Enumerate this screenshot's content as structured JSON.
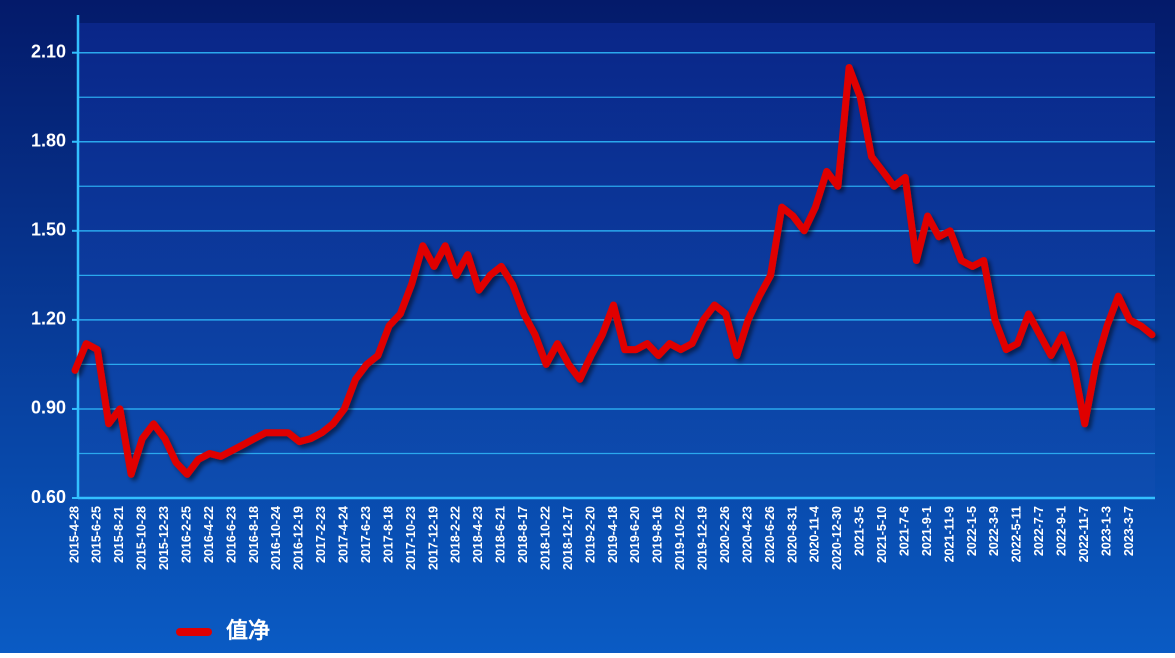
{
  "chart_data": {
    "type": "line",
    "categories": [
      "2015-4-28",
      null,
      "2015-6-25",
      null,
      "2015-8-21",
      null,
      "2015-10-28",
      null,
      "2015-12-23",
      null,
      "2016-2-25",
      null,
      "2016-4-22",
      null,
      "2016-6-23",
      null,
      "2016-8-18",
      null,
      "2016-10-24",
      null,
      "2016-12-19",
      null,
      "2017-2-23",
      null,
      "2017-4-24",
      null,
      "2017-6-23",
      null,
      "2017-8-18",
      null,
      "2017-10-23",
      null,
      "2017-12-19",
      null,
      "2018-2-22",
      null,
      "2018-4-23",
      null,
      "2018-6-21",
      null,
      "2018-8-17",
      null,
      "2018-10-22",
      null,
      "2018-12-17",
      null,
      "2019-2-20",
      null,
      "2019-4-18",
      null,
      "2019-6-20",
      null,
      "2019-8-16",
      null,
      "2019-10-22",
      null,
      "2019-12-19",
      null,
      "2020-2-26",
      null,
      "2020-4-23",
      null,
      "2020-6-26",
      null,
      "2020-8-31",
      null,
      "2020-11-4",
      null,
      "2020-12-30",
      null,
      "2021-3-5",
      null,
      "2021-5-10",
      null,
      "2021-7-6",
      null,
      "2021-9-1",
      null,
      "2021-11-9",
      null,
      "2022-1-5",
      null,
      "2022-3-9",
      null,
      "2022-5-11",
      null,
      "2022-7-7",
      null,
      "2022-9-1",
      null,
      "2022-11-7",
      null,
      "2023-1-3",
      null,
      "2023-3-7",
      null,
      null
    ],
    "series": [
      {
        "name": "值净",
        "color": "#e00000",
        "values": [
          1.03,
          1.12,
          1.1,
          0.85,
          0.9,
          0.68,
          0.8,
          0.85,
          0.8,
          0.72,
          0.68,
          0.73,
          0.75,
          0.74,
          0.76,
          0.78,
          0.8,
          0.82,
          0.82,
          0.82,
          0.79,
          0.8,
          0.82,
          0.85,
          0.9,
          1.0,
          1.05,
          1.08,
          1.18,
          1.22,
          1.32,
          1.45,
          1.38,
          1.45,
          1.35,
          1.42,
          1.3,
          1.35,
          1.38,
          1.32,
          1.22,
          1.15,
          1.05,
          1.12,
          1.05,
          1.0,
          1.08,
          1.15,
          1.25,
          1.1,
          1.1,
          1.12,
          1.08,
          1.12,
          1.1,
          1.12,
          1.2,
          1.25,
          1.22,
          1.08,
          1.2,
          1.28,
          1.35,
          1.58,
          1.55,
          1.5,
          1.58,
          1.7,
          1.65,
          2.05,
          1.95,
          1.75,
          1.7,
          1.65,
          1.68,
          1.4,
          1.55,
          1.48,
          1.5,
          1.4,
          1.38,
          1.4,
          1.2,
          1.1,
          1.12,
          1.22,
          1.15,
          1.08,
          1.15,
          1.05,
          0.85,
          1.05,
          1.18,
          1.28,
          1.2,
          1.18,
          1.15
        ]
      }
    ],
    "ylim": [
      0.6,
      2.2
    ],
    "yticks": [
      {
        "value": 0.6,
        "label": "0.60"
      },
      {
        "value": 0.9,
        "label": "0.90"
      },
      {
        "value": 1.2,
        "label": "1.20"
      },
      {
        "value": 1.5,
        "label": "1.50"
      },
      {
        "value": 1.8,
        "label": "1.80"
      },
      {
        "value": 2.1,
        "label": "2.10"
      }
    ],
    "minor_yticks": [
      0.75,
      1.05,
      1.35,
      1.65,
      1.95
    ],
    "grid": true,
    "legend": "bottom-left"
  }
}
